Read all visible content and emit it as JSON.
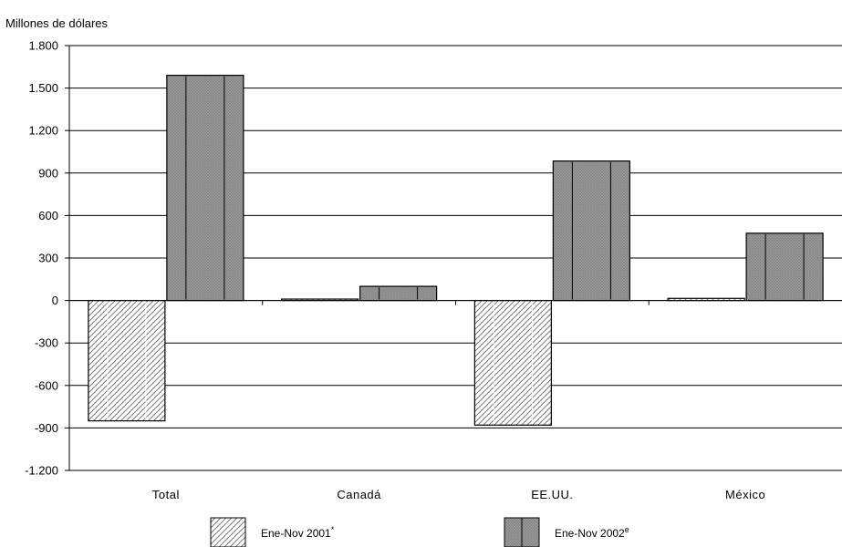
{
  "chart_data": {
    "type": "bar",
    "ylabel": "Millones de dólares",
    "categories": [
      "Total",
      "Canadá",
      "EE.UU.",
      "México"
    ],
    "series": [
      {
        "name": "Ene-Nov 2001",
        "name_marker": "*",
        "values": [
          -850,
          10,
          -880,
          15
        ],
        "pattern": "diagonal-hatch"
      },
      {
        "name": "Ene-Nov 2002",
        "name_marker": "e",
        "values": [
          1590,
          100,
          985,
          475
        ],
        "pattern": "crosshatch"
      }
    ],
    "ylim": [
      -1200,
      1800
    ],
    "ytick_values": [
      -1200,
      -900,
      -600,
      -300,
      0,
      300,
      600,
      900,
      1200,
      1500,
      1800
    ],
    "ytick_labels": [
      "-1.200",
      "-900",
      "-600",
      "-300",
      "0",
      "300",
      "600",
      "900",
      "1.200",
      "1.500",
      "1.800"
    ],
    "grid": true,
    "legend_position": "bottom"
  }
}
